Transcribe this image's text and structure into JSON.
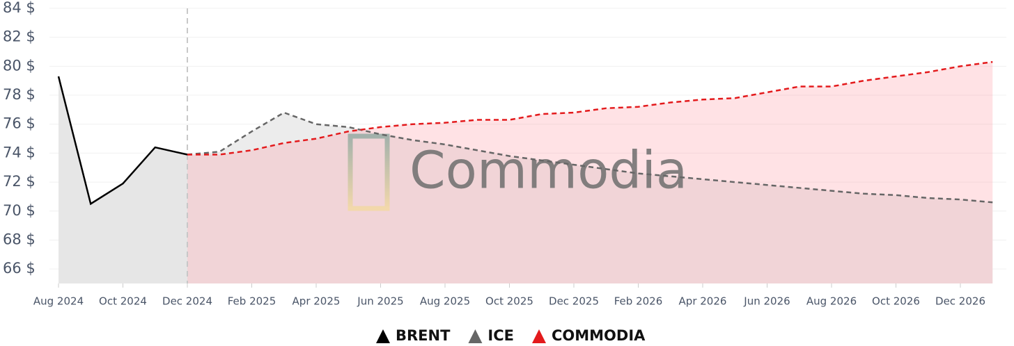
{
  "chart_data": {
    "type": "line",
    "watermark": "Commodia",
    "categories": [
      "Aug 2024",
      null,
      "Oct 2024",
      null,
      "Dec 2024",
      null,
      "Feb 2025",
      null,
      "Apr 2025",
      null,
      "Jun 2025",
      null,
      "Aug 2025",
      null,
      "Oct 2025",
      null,
      "Dec 2025",
      null,
      "Feb 2026",
      null,
      "Apr 2026",
      null,
      "Jun 2026",
      null,
      "Aug 2026",
      null,
      "Oct 2026",
      null,
      "Dec 2026",
      null
    ],
    "series": [
      {
        "name": "BRENT",
        "color": "#000000",
        "fill": "#e6e6e6",
        "dashed": false,
        "values": [
          79.3,
          70.5,
          71.9,
          74.4,
          73.9,
          null,
          null,
          null,
          null,
          null,
          null,
          null,
          null,
          null,
          null,
          null,
          null,
          null,
          null,
          null,
          null,
          null,
          null,
          null,
          null,
          null,
          null,
          null,
          null,
          null
        ]
      },
      {
        "name": "ICE",
        "color": "#666666",
        "fill": "#ececec",
        "dashed": true,
        "values": [
          null,
          null,
          null,
          null,
          73.9,
          74.1,
          75.5,
          76.8,
          76.0,
          75.8,
          75.3,
          74.9,
          74.6,
          74.2,
          73.8,
          73.5,
          73.2,
          72.9,
          72.6,
          72.4,
          72.2,
          72.0,
          71.8,
          71.6,
          71.4,
          71.2,
          71.1,
          70.9,
          70.8,
          70.6
        ]
      },
      {
        "name": "COMMODIA",
        "color": "#e31a1c",
        "fill": "rgba(255,150,160,0.28)",
        "dashed": true,
        "values": [
          null,
          null,
          null,
          null,
          73.9,
          73.9,
          74.2,
          74.7,
          75.0,
          75.5,
          75.8,
          76.0,
          76.1,
          76.3,
          76.3,
          76.7,
          76.8,
          77.1,
          77.2,
          77.5,
          77.7,
          77.8,
          78.2,
          78.6,
          78.6,
          79.0,
          79.3,
          79.6,
          80.0,
          80.3
        ]
      }
    ],
    "ylim": [
      65,
      84
    ],
    "yticks": [
      {
        "value": 66,
        "label": "66 $"
      },
      {
        "value": 68,
        "label": "68 $"
      },
      {
        "value": 70,
        "label": "70 $"
      },
      {
        "value": 72,
        "label": "72 $"
      },
      {
        "value": 74,
        "label": "74 $"
      },
      {
        "value": 76,
        "label": "76 $"
      },
      {
        "value": 78,
        "label": "78 $"
      },
      {
        "value": 80,
        "label": "80 $"
      },
      {
        "value": 82,
        "label": "82 $"
      },
      {
        "value": 84,
        "label": "84 $"
      }
    ],
    "grid": true
  }
}
